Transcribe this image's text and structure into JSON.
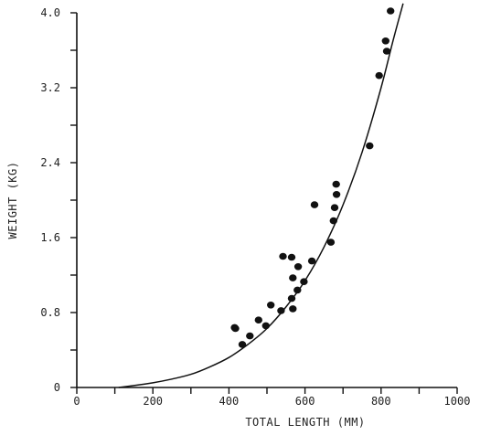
{
  "chart_data": {
    "type": "scatter",
    "xlabel": "TOTAL LENGTH (MM)",
    "ylabel": "WEIGHT (KG)",
    "xlim": [
      0,
      1000
    ],
    "ylim": [
      0,
      4.0
    ],
    "x_ticks": [
      0,
      100,
      200,
      300,
      400,
      500,
      600,
      700,
      800,
      900,
      1000
    ],
    "x_tick_labels": [
      "0",
      "",
      "200",
      "",
      "400",
      "",
      "600",
      "",
      "800",
      "",
      "1000"
    ],
    "y_ticks": [
      0,
      0.4,
      0.8,
      1.2,
      1.6,
      2.0,
      2.4,
      2.8,
      3.2,
      3.6,
      4.0
    ],
    "y_tick_labels": [
      "0",
      "",
      "0.8",
      "",
      "1.6",
      "",
      "2.4",
      "",
      "3.2",
      "",
      "4.0"
    ],
    "grid": false,
    "legend": "none",
    "colors": {
      "ink": "#111111"
    },
    "series": [
      {
        "points": [
          [
            415,
            0.64
          ],
          [
            417,
            0.63
          ],
          [
            435,
            0.46
          ],
          [
            455,
            0.55
          ],
          [
            478,
            0.72
          ],
          [
            497,
            0.66
          ],
          [
            510,
            0.88
          ],
          [
            537,
            0.82
          ],
          [
            542,
            1.4
          ],
          [
            565,
            1.39
          ],
          [
            565,
            0.95
          ],
          [
            568,
            0.84
          ],
          [
            568,
            1.17
          ],
          [
            580,
            1.04
          ],
          [
            582,
            1.29
          ],
          [
            597,
            1.13
          ],
          [
            618,
            1.35
          ],
          [
            625,
            1.95
          ],
          [
            668,
            1.55
          ],
          [
            675,
            1.78
          ],
          [
            678,
            1.92
          ],
          [
            682,
            2.17
          ],
          [
            683,
            2.06
          ],
          [
            770,
            2.58
          ],
          [
            795,
            3.33
          ],
          [
            812,
            3.7
          ],
          [
            815,
            3.59
          ],
          [
            825,
            4.02
          ]
        ]
      }
    ],
    "fit_curve": {
      "type": "line",
      "points": [
        [
          110,
          0.0
        ],
        [
          150,
          0.02
        ],
        [
          200,
          0.05
        ],
        [
          250,
          0.09
        ],
        [
          300,
          0.14
        ],
        [
          350,
          0.22
        ],
        [
          400,
          0.32
        ],
        [
          450,
          0.46
        ],
        [
          500,
          0.63
        ],
        [
          550,
          0.86
        ],
        [
          600,
          1.14
        ],
        [
          650,
          1.5
        ],
        [
          700,
          1.95
        ],
        [
          750,
          2.51
        ],
        [
          800,
          3.2
        ],
        [
          830,
          3.68
        ],
        [
          858,
          4.1
        ]
      ]
    }
  }
}
